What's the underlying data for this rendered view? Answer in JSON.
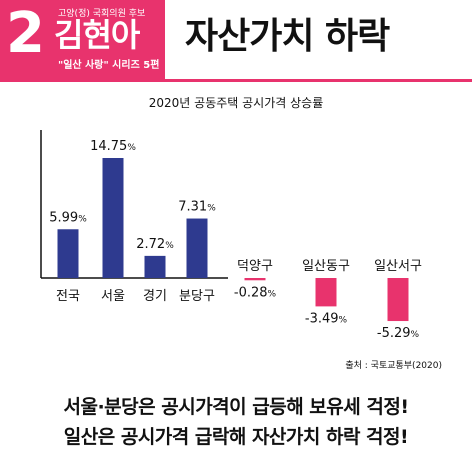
{
  "header": {
    "number": "2",
    "candidate_sub": "고양(정) 국회의원 후보",
    "candidate_name": "김현아",
    "series_label": "\"일산 사랑\" 시리즈 5편",
    "headline": "자산가치 하락"
  },
  "chart_data": {
    "type": "bar",
    "title": "2020년 공동주택 공시가격 상승률",
    "categories": [
      "전국",
      "서울",
      "경기",
      "분당구",
      "덕양구",
      "일산동구",
      "일산서구"
    ],
    "values": [
      5.99,
      14.75,
      2.72,
      7.31,
      -0.28,
      -3.49,
      -5.29
    ],
    "value_labels": [
      "5.99",
      "14.75",
      "2.72",
      "7.31",
      "-0.28",
      "-3.49",
      "-5.29"
    ],
    "unit": "%",
    "colors": {
      "positive": "#2e3a8f",
      "negative": "#e8336d"
    },
    "ylim": [
      -7,
      16
    ],
    "source": "출처 : 국토교통부(2020)"
  },
  "caption": {
    "line1": "서울·분당은 공시가격이 급등해 보유세 걱정!",
    "line2": "일산은 공시가격 급락해 자산가치 하락 걱정!"
  },
  "colors": {
    "brand_pink": "#e8336d",
    "text": "#111111"
  }
}
